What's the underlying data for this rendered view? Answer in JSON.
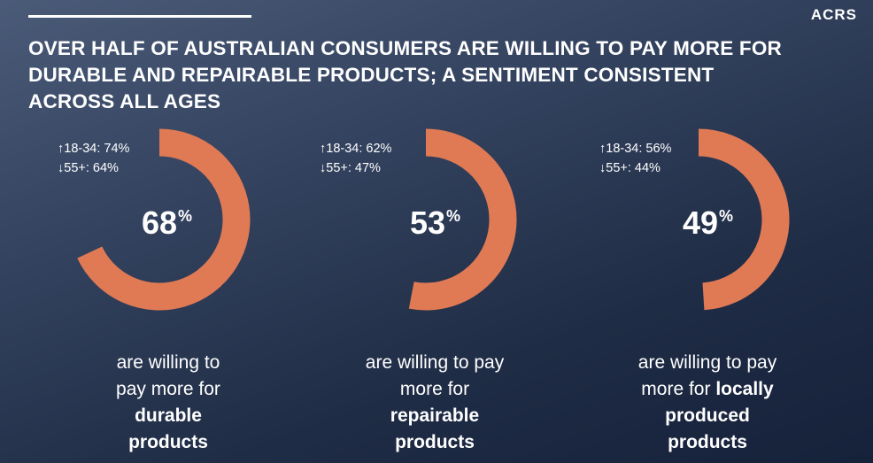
{
  "brand": "ACRS",
  "title_lines": [
    "OVER HALF OF AUSTRALIAN CONSUMERS ARE WILLING TO PAY MORE FOR",
    "DURABLE AND REPAIRABLE PRODUCTS; A SENTIMENT CONSISTENT",
    "ACROSS ALL AGES"
  ],
  "colors": {
    "ring": "#e07a55",
    "background_top": "#4a5b78",
    "background_bottom": "#16213a",
    "text": "#ffffff"
  },
  "chart_data": [
    {
      "type": "donut",
      "value": 68,
      "value_label": "68",
      "unit": "%",
      "age_stats": [
        "↑18-34: 74%",
        "↓55+: 64%"
      ],
      "caption_lines": [
        "are willing to",
        "pay more for",
        "durable",
        "products"
      ],
      "caption_bold_from": 2
    },
    {
      "type": "donut",
      "value": 53,
      "value_label": "53",
      "unit": "%",
      "age_stats": [
        "↑18-34: 62%",
        "↓55+: 47%"
      ],
      "caption_lines": [
        "are willing to pay",
        "more for",
        "repairable",
        "products"
      ],
      "caption_bold_from": 2
    },
    {
      "type": "donut",
      "value": 49,
      "value_label": "49",
      "unit": "%",
      "age_stats": [
        "↑18-34: 56%",
        "↓55+: 44%"
      ],
      "caption_lines": [
        "are willing to pay",
        "more for ",
        "locally",
        "produced",
        "products"
      ],
      "caption_bold_from": 2
    }
  ]
}
